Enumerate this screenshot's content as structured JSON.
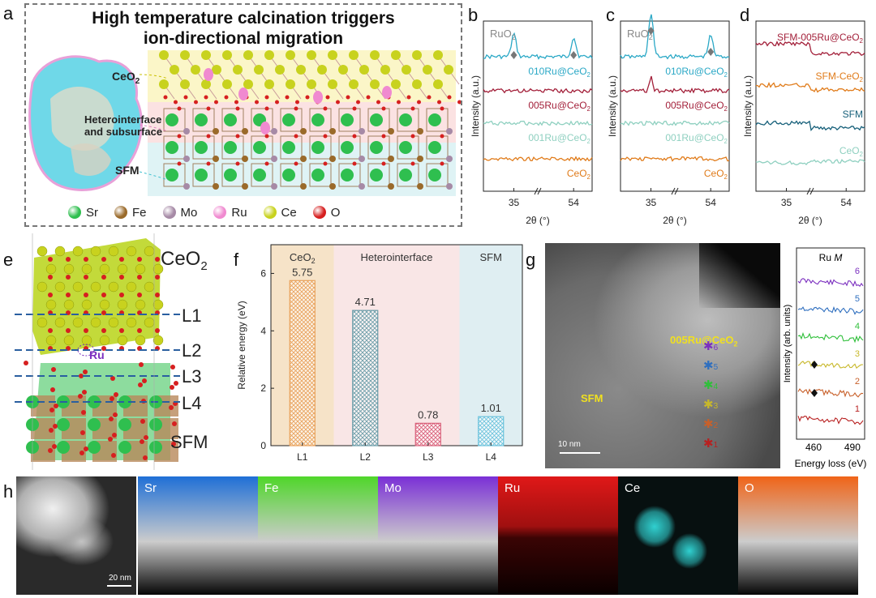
{
  "panel_a": {
    "letter": "a",
    "title_line1": "High temperature calcination triggers",
    "title_line2": "ion-directional migration",
    "region_ceo2": "CeO",
    "region_ceo2_sub": "2",
    "region_hetero1": "Heterointerface",
    "region_hetero2": "and subsurface",
    "region_sfm": "SFM",
    "legend": [
      {
        "label": "Sr",
        "color": "#2fbf4f"
      },
      {
        "label": "Fe",
        "color": "#9a6a2a"
      },
      {
        "label": "Mo",
        "color": "#a68aa6"
      },
      {
        "label": "Ru",
        "color": "#f08ad0"
      },
      {
        "label": "Ce",
        "color": "#c8d21e"
      },
      {
        "label": "O",
        "color": "#d62020"
      }
    ]
  },
  "panel_b": {
    "letter": "b",
    "peak_label": "RuO",
    "peak_label_sub": "2",
    "ylabel": "Intensity (a.u.)",
    "xlabel": "2θ (°)",
    "ticks": [
      "35",
      "54"
    ],
    "traces": [
      {
        "name": "010Ru@CeO2",
        "label": "010Ru@CeO",
        "color": "#2aa8c6"
      },
      {
        "name": "005Ru@CeO2",
        "label": "005Ru@CeO",
        "color": "#a3203a"
      },
      {
        "name": "001Ru@CeO2",
        "label": "001Ru@CeO",
        "color": "#8fd0c0"
      },
      {
        "name": "CeO2",
        "label": "CeO",
        "color": "#e07b1a"
      }
    ]
  },
  "panel_c": {
    "letter": "c",
    "peak_label": "RuO",
    "peak_label_sub": "2",
    "ylabel": "Intensity (a.u.)",
    "xlabel": "2θ (°)",
    "ticks": [
      "35",
      "54"
    ],
    "traces": [
      {
        "name": "010Ru@CeO2",
        "label": "010Ru@CeO",
        "color": "#2aa8c6"
      },
      {
        "name": "005Ru@CeO2",
        "label": "005Ru@CeO",
        "color": "#a3203a"
      },
      {
        "name": "001Ru@CeO2",
        "label": "001Ru@CeO",
        "color": "#8fd0c0"
      },
      {
        "name": "CeO2",
        "label": "CeO",
        "color": "#e07b1a"
      }
    ]
  },
  "panel_d": {
    "letter": "d",
    "ylabel": "Intensity (a.u.)",
    "xlabel": "2θ (°)",
    "ticks": [
      "35",
      "54"
    ],
    "traces": [
      {
        "name": "SFM-005Ru@CeO2",
        "label": "SFM-005Ru@CeO",
        "color": "#a3203a"
      },
      {
        "name": "SFM-CeO2",
        "label": "SFM-CeO",
        "color": "#e07b1a"
      },
      {
        "name": "SFM",
        "label": "SFM",
        "color": "#17607a"
      },
      {
        "name": "CeO2",
        "label": "CeO",
        "color": "#8fd0c0"
      }
    ]
  },
  "panel_e": {
    "letter": "e",
    "top_label": "CeO",
    "top_label_sub": "2",
    "layers": [
      "L1",
      "L2",
      "L3",
      "L4"
    ],
    "ru_label": "Ru",
    "bottom_label": "SFM"
  },
  "panel_f": {
    "letter": "f",
    "regions": [
      {
        "label": "CeO",
        "sub": "2",
        "color": "#f6e3c8"
      },
      {
        "label": "Heterointerface",
        "sub": "",
        "color": "#f9e6e6"
      },
      {
        "label": "SFM",
        "sub": "",
        "color": "#dfeef2"
      }
    ]
  },
  "chart_data": {
    "type": "bar",
    "categories": [
      "L1",
      "L2",
      "L3",
      "L4"
    ],
    "values": [
      5.75,
      4.71,
      0.78,
      1.01
    ],
    "value_labels": [
      "5.75",
      "4.71",
      "0.78",
      "1.01"
    ],
    "ylabel": "Relative energy (eV)",
    "ylim": [
      0,
      7
    ],
    "yticks": [
      "0",
      "2",
      "4",
      "6"
    ],
    "bar_colors": [
      "#e8a15a",
      "#6a9ca8",
      "#d9607a",
      "#6cc3dc"
    ]
  },
  "panel_g": {
    "letter": "g",
    "sample_label": "005Ru@CeO",
    "sample_label_sub": "2",
    "sfm_label": "SFM",
    "scale": "10 nm",
    "points": [
      {
        "n": "6",
        "color": "#7b2fbf"
      },
      {
        "n": "5",
        "color": "#2f6fbf"
      },
      {
        "n": "4",
        "color": "#2fbf3a"
      },
      {
        "n": "3",
        "color": "#c8b82a"
      },
      {
        "n": "2",
        "color": "#c8602a"
      },
      {
        "n": "1",
        "color": "#b82020"
      }
    ],
    "eels_title": "Ru ",
    "eels_title_italic": "M",
    "eels_ylabel": "Intensity (arb. units)",
    "eels_xlabel": "Energy loss (eV)",
    "eels_ticks": [
      "460",
      "490"
    ]
  },
  "panel_h": {
    "letter": "h",
    "scale": "20 nm",
    "maps": [
      {
        "label": "",
        "color": "#bbbbbb"
      },
      {
        "label": "Sr",
        "color": "#1f6fd6"
      },
      {
        "label": "Fe",
        "color": "#4fd62a"
      },
      {
        "label": "Mo",
        "color": "#7a2fd6"
      },
      {
        "label": "Ru",
        "color": "#e01818"
      },
      {
        "label": "Ce",
        "color": "#30d0d0"
      },
      {
        "label": "O",
        "color": "#f06418"
      }
    ]
  }
}
